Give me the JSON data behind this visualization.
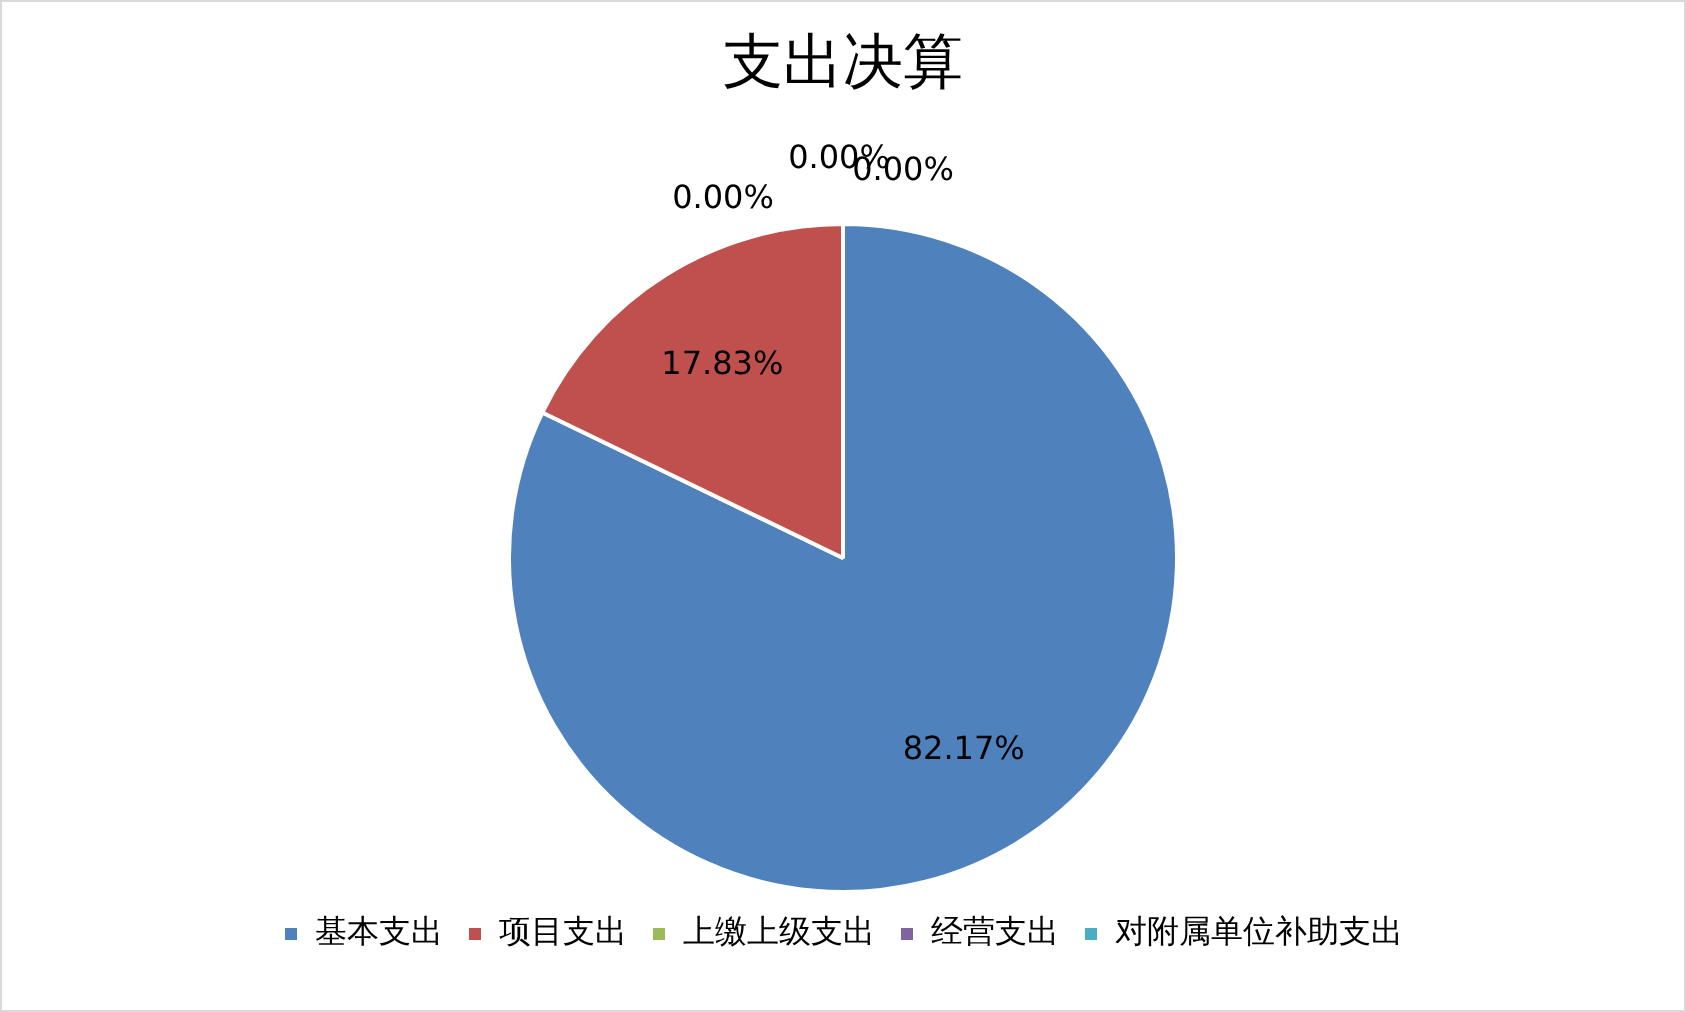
{
  "chart_data": {
    "type": "pie",
    "title": "支出决算",
    "categories": [
      "基本支出",
      "项目支出",
      "上缴上级支出",
      "经营支出",
      "对附属单位补助支出"
    ],
    "values": [
      82.17,
      17.83,
      0,
      0,
      0
    ],
    "colors": [
      "#4f81bd",
      "#c0504d",
      "#9bbb59",
      "#8064a2",
      "#4bacc6"
    ],
    "value_labels": [
      "82.17%",
      "17.83%",
      "0.00%",
      "0.00%",
      "0.00%"
    ],
    "legend": "bottom"
  }
}
